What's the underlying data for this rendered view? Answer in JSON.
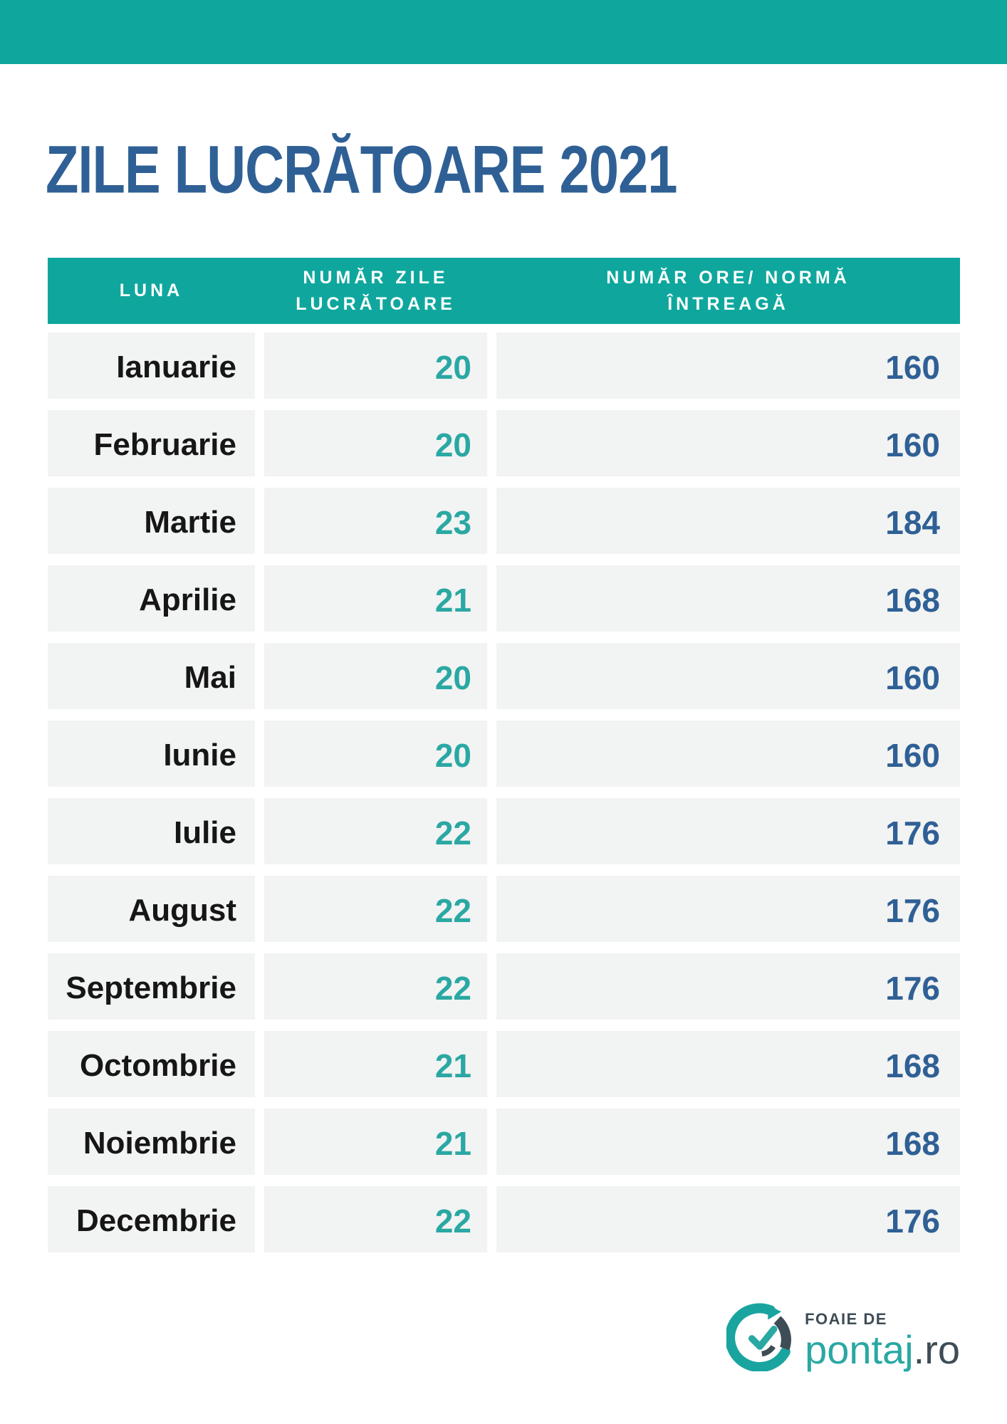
{
  "title": "ZILE LUCRĂTOARE 2021",
  "colors": {
    "teal": "#0fa79d",
    "teal_number": "#2aa8a3",
    "blue": "#2f6095",
    "slate": "#3e4c55",
    "cell_gray": "#f2f3f3"
  },
  "table": {
    "columns": [
      {
        "id": "luna",
        "label": "LUNA",
        "label_lines": [
          "LUNA"
        ]
      },
      {
        "id": "zile",
        "label": "NUMĂR ZILE LUCRĂTOARE",
        "label_lines": [
          "NUMĂR ZILE",
          "LUCRĂTOARE"
        ]
      },
      {
        "id": "ore",
        "label": "NUMĂR ORE/ NORMĂ ÎNTREAGĂ",
        "label_lines": [
          "NUMĂR ORE/ NORMĂ",
          "ÎNTREAGĂ"
        ]
      }
    ],
    "rows": [
      {
        "luna": "Ianuarie",
        "zile": "20",
        "ore": "160"
      },
      {
        "luna": "Februarie",
        "zile": "20",
        "ore": "160"
      },
      {
        "luna": "Martie",
        "zile": "23",
        "ore": "184"
      },
      {
        "luna": "Aprilie",
        "zile": "21",
        "ore": "168"
      },
      {
        "luna": "Mai",
        "zile": "20",
        "ore": "160"
      },
      {
        "luna": "Iunie",
        "zile": "20",
        "ore": "160"
      },
      {
        "luna": "Iulie",
        "zile": "22",
        "ore": "176"
      },
      {
        "luna": "August",
        "zile": "22",
        "ore": "176"
      },
      {
        "luna": "Septembrie",
        "zile": "22",
        "ore": "176"
      },
      {
        "luna": "Octombrie",
        "zile": "21",
        "ore": "168"
      },
      {
        "luna": "Noiembrie",
        "zile": "21",
        "ore": "168"
      },
      {
        "luna": "Decembrie",
        "zile": "22",
        "ore": "176"
      }
    ]
  },
  "footer": {
    "logo_small_text": "FOAIE DE",
    "logo_brand": "pontaj",
    "logo_tld": ".ro"
  }
}
